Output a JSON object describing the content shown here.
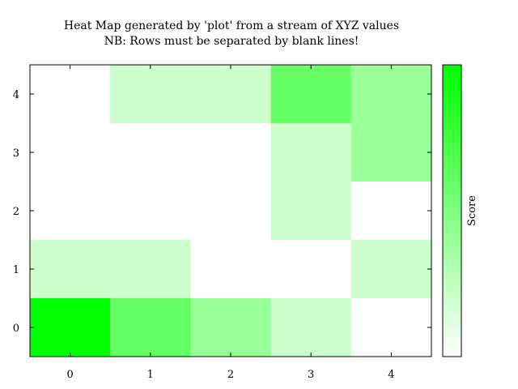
{
  "chart_data": {
    "type": "heatmap",
    "title": "Heat Map generated by 'plot' from a stream of XYZ values",
    "subtitle": "NB: Rows must be separated by blank lines!",
    "x_ticks": [
      "0",
      "1",
      "2",
      "3",
      "4"
    ],
    "y_ticks": [
      "0",
      "1",
      "2",
      "3",
      "4"
    ],
    "xlim": [
      -0.5,
      4.5
    ],
    "ylim": [
      -0.5,
      4.5
    ],
    "grid": false,
    "colorbar": {
      "label": "Score",
      "range": [
        0,
        5
      ],
      "low_color": "#ffffff",
      "high_color": "#00ff00"
    },
    "z": [
      [
        5,
        3,
        2,
        1,
        0
      ],
      [
        1,
        1,
        0,
        0,
        1
      ],
      [
        0,
        0,
        0,
        1,
        0
      ],
      [
        0,
        0,
        0,
        1,
        2
      ],
      [
        0,
        1,
        1,
        3,
        2
      ]
    ]
  }
}
